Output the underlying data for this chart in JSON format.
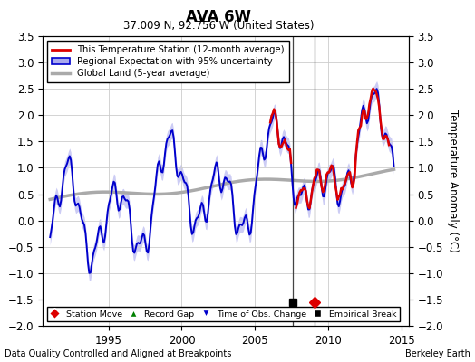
{
  "title": "AVA 6W",
  "subtitle": "37.009 N, 92.756 W (United States)",
  "ylabel": "Temperature Anomaly (°C)",
  "xlabel_left": "Data Quality Controlled and Aligned at Breakpoints",
  "xlabel_right": "Berkeley Earth",
  "ylim": [
    -2.0,
    3.5
  ],
  "xlim": [
    1990.5,
    2015.5
  ],
  "yticks": [
    -2,
    -1.5,
    -1,
    -0.5,
    0,
    0.5,
    1,
    1.5,
    2,
    2.5,
    3,
    3.5
  ],
  "xticks": [
    1995,
    2000,
    2005,
    2010,
    2015
  ],
  "grid_color": "#cccccc",
  "background_color": "#ffffff",
  "regional_color": "#0000cc",
  "regional_fill_color": "#aaaaee",
  "station_color": "#dd0000",
  "global_color": "#aaaaaa",
  "empirical_break_x": 2007.6,
  "station_move_x": 2009.1,
  "vertical_line1_x": 2007.6,
  "vertical_line2_x": 2009.1
}
